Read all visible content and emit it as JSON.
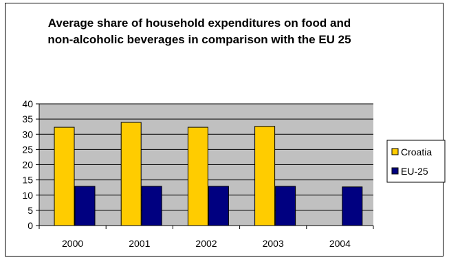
{
  "chart_data": {
    "type": "bar",
    "title": "Average share of household expenditures on food and non-alcoholic beverages in comparison with the EU 25",
    "categories": [
      "2000",
      "2001",
      "2002",
      "2003",
      "2004"
    ],
    "series": [
      {
        "name": "Croatia",
        "values": [
          32.3,
          33.9,
          32.3,
          32.6,
          null
        ],
        "color": "#FFCC00"
      },
      {
        "name": "EU-25",
        "values": [
          12.9,
          12.9,
          12.9,
          12.9,
          12.7
        ],
        "color": "#000080"
      }
    ],
    "ylim": [
      0,
      40
    ],
    "yticks": [
      "0",
      "5",
      "10",
      "15",
      "20",
      "25",
      "30",
      "35",
      "40"
    ],
    "grid": true,
    "plot_background": "#C0C0C0",
    "legend_position": "right"
  }
}
